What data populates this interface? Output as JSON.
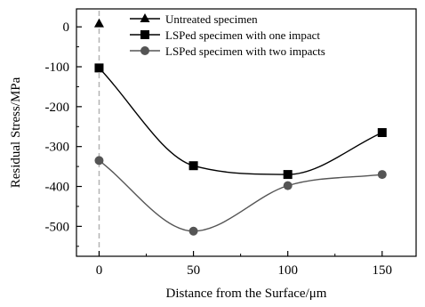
{
  "chart_data": {
    "type": "line",
    "title": "",
    "xlabel": "Distance from the Surface/μm",
    "ylabel": "Residual Stress/MPa",
    "xlim": [
      -12,
      168
    ],
    "ylim": [
      -575,
      45
    ],
    "xticks": [
      0,
      50,
      100,
      150
    ],
    "yticks": [
      0,
      -100,
      -200,
      -300,
      -400,
      -500
    ],
    "legend_position": "top-left",
    "series": [
      {
        "name": "Untreated specimen",
        "marker": "triangle",
        "color": "#000000",
        "x": [
          0
        ],
        "y": [
          8
        ]
      },
      {
        "name": "LSPed specimen with one impact",
        "marker": "square",
        "color": "#000000",
        "x": [
          0,
          50,
          100,
          150
        ],
        "y": [
          -103,
          -348,
          -370,
          -265
        ]
      },
      {
        "name": "LSPed specimen with two impacts",
        "marker": "circle",
        "color": "#555555",
        "x": [
          0,
          50,
          100,
          150
        ],
        "y": [
          -335,
          -512,
          -398,
          -370
        ]
      }
    ],
    "reference_line": {
      "x": 0,
      "style": "dashed",
      "color": "#b4b4b4"
    }
  }
}
